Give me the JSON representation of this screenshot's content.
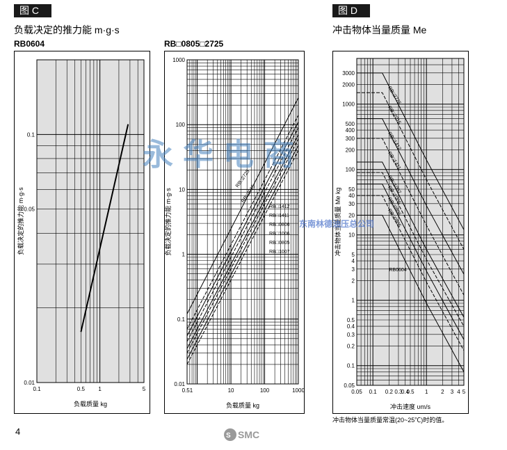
{
  "headers": {
    "left": "图 C",
    "right": "图 D"
  },
  "titles": {
    "left": "负载决定的推力能  m·g·s",
    "right": "冲击物体当量质量  Me"
  },
  "subtitles": {
    "chart1": "RB0604",
    "chart2": "RB□0805□2725"
  },
  "footer": {
    "page": "4",
    "note": "冲击物体当量质量常温(20~25℃)时的值。",
    "logo": "SMC"
  },
  "watermark": {
    "main": "永华电商",
    "sub": "东南林德油压总公司"
  },
  "chart_data": [
    {
      "type": "line",
      "log_x": true,
      "log_y": true,
      "xlim": [
        0.1,
        5
      ],
      "ylim": [
        0.01,
        0.2
      ],
      "xticks": [
        "0.1",
        "0.5",
        "1",
        "5"
      ],
      "yticks": [
        "0.1",
        "0.05",
        "0.01"
      ],
      "xlabel": "负载质量  kg",
      "ylabel": "负载决定的推力能  m·g·s",
      "series": [
        {
          "x": [
            0.5,
            2.8
          ],
          "y": [
            0.016,
            0.11
          ]
        }
      ]
    },
    {
      "type": "line",
      "log_x": true,
      "log_y": true,
      "xlim": [
        0.5,
        1000
      ],
      "ylim": [
        0.01,
        1000
      ],
      "xticks": [
        "0.51",
        "10",
        "100",
        "1000"
      ],
      "yticks": [
        "1000",
        "100",
        "10",
        "1",
        "0.1",
        "0.01"
      ],
      "xlabel": "负载质量  kg",
      "ylabel": "负载决定的推力能  m·g·s",
      "series": [
        {
          "name": "RB□2725",
          "x": [
            0.5,
            1000
          ],
          "y": [
            0.12,
            260
          ]
        },
        {
          "name": "RB□2015",
          "x": [
            0.5,
            1000
          ],
          "y": [
            0.07,
            140
          ]
        },
        {
          "name": "RB□1412",
          "x": [
            0.5,
            1000
          ],
          "y": [
            0.055,
            110
          ]
        },
        {
          "name": "RB□1411",
          "x": [
            0.5,
            1000
          ],
          "y": [
            0.045,
            90
          ]
        },
        {
          "name": "RB□0806",
          "x": [
            0.5,
            1000
          ],
          "y": [
            0.035,
            70
          ]
        },
        {
          "name": "RB□1006",
          "x": [
            0.5,
            1000
          ],
          "y": [
            0.03,
            60
          ]
        },
        {
          "name": "RB□0805",
          "x": [
            0.5,
            1000
          ],
          "y": [
            0.024,
            48
          ]
        },
        {
          "name": "RB□1007",
          "x": [
            0.5,
            1000
          ],
          "y": [
            0.02,
            40
          ]
        }
      ]
    },
    {
      "type": "line",
      "log_x": true,
      "log_y": true,
      "xlim": [
        0.05,
        5
      ],
      "ylim": [
        0.05,
        5000
      ],
      "xticks": [
        "0.05",
        "0.1",
        "0.2",
        "0.3",
        "0.4",
        "0.5",
        "1",
        "2",
        "3",
        "4",
        "5"
      ],
      "yticks": [
        "3000",
        "2000",
        "1000",
        "500",
        "400",
        "300",
        "200",
        "100",
        "50",
        "40",
        "30",
        "20",
        "10",
        "5",
        "4",
        "3",
        "2",
        "1",
        "0.5",
        "0.4",
        "0.3",
        "0.2",
        "0.1",
        "0.05"
      ],
      "xlabel": "冲击速度  υm/s",
      "ylabel": "冲击物体当量质量  Me kg",
      "series": [
        {
          "name": "RB□2725",
          "x": [
            0.05,
            0.15,
            1,
            5
          ],
          "y": [
            3000,
            3000,
            140,
            12
          ]
        },
        {
          "name": "RB□2015",
          "x": [
            0.05,
            0.15,
            1,
            5
          ],
          "y": [
            1500,
            1500,
            70,
            6
          ]
        },
        {
          "name": "RB□1412",
          "x": [
            0.05,
            0.15,
            1,
            5
          ],
          "y": [
            600,
            600,
            28,
            2.5
          ]
        },
        {
          "name": "RB□1411",
          "x": [
            0.05,
            0.15,
            1,
            5
          ],
          "y": [
            300,
            300,
            14,
            1.2
          ]
        },
        {
          "name": "RB□1007",
          "x": [
            0.05,
            0.15,
            1,
            5
          ],
          "y": [
            130,
            130,
            6,
            0.55
          ]
        },
        {
          "name": "RB□1006",
          "x": [
            0.05,
            0.15,
            1,
            5
          ],
          "y": [
            90,
            90,
            4.2,
            0.4
          ]
        },
        {
          "name": "RB□0806",
          "x": [
            0.05,
            0.15,
            1,
            5
          ],
          "y": [
            60,
            60,
            2.8,
            0.25
          ]
        },
        {
          "name": "RB□0805",
          "x": [
            0.05,
            0.15,
            1,
            5
          ],
          "y": [
            40,
            40,
            1.9,
            0.17
          ]
        },
        {
          "name": "RB0604",
          "x": [
            0.05,
            0.15,
            1,
            5
          ],
          "y": [
            20,
            20,
            0.9,
            0.08
          ]
        }
      ]
    }
  ]
}
